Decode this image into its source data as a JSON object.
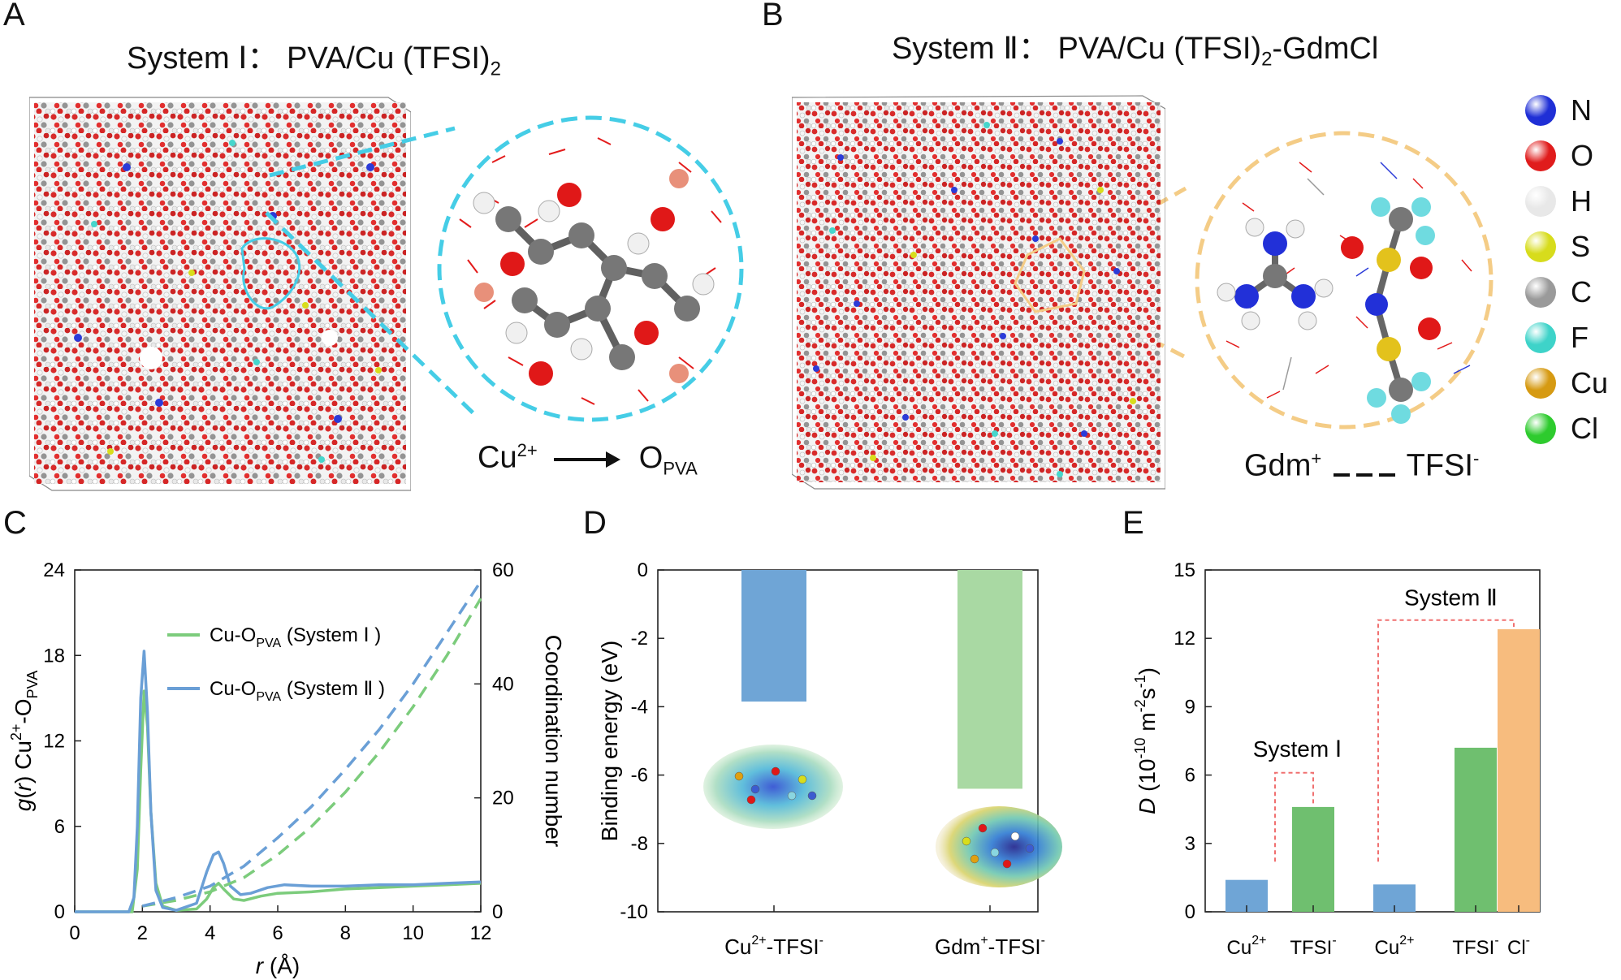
{
  "panels": {
    "a": {
      "letter": "A",
      "title_prefix": "System Ⅰ： PVA/Cu (TFSI)",
      "title_sub": "2",
      "caption_ion": "Cu",
      "caption_ion_sup": "2+",
      "caption_target": "O",
      "caption_target_sub": "PVA"
    },
    "b": {
      "letter": "B",
      "title_prefix": "System Ⅱ： PVA/Cu (TFSI)",
      "title_sub": "2",
      "title_suffix": "-GdmCl",
      "caption_left": "Gdm",
      "caption_left_sup": "+",
      "caption_right": "TFSI",
      "caption_right_sup": "-"
    },
    "c": {
      "letter": "C"
    },
    "d": {
      "letter": "D"
    },
    "e": {
      "letter": "E"
    }
  },
  "element_legend": [
    {
      "symbol": "N",
      "color": "#1f2fd6"
    },
    {
      "symbol": "O",
      "color": "#e01c1c"
    },
    {
      "symbol": "H",
      "color": "#e8e8e8"
    },
    {
      "symbol": "S",
      "color": "#d7dc1c"
    },
    {
      "symbol": "C",
      "color": "#9a9a9a"
    },
    {
      "symbol": "F",
      "color": "#3ed3c9"
    },
    {
      "symbol": "Cu",
      "color": "#d69a12"
    },
    {
      "symbol": "Cl",
      "color": "#2ecb2e"
    }
  ],
  "chart_data": [
    {
      "type": "line",
      "id": "C",
      "xlabel": "r (Å)",
      "ylabel_left": "g(r) Cu2+-OPVA",
      "ylabel_right": "Coordination number",
      "xlim": [
        0,
        12
      ],
      "ylim_left": [
        0,
        24
      ],
      "ylim_right": [
        0,
        60
      ],
      "xticks": [
        "0",
        "2",
        "4",
        "6",
        "8",
        "10",
        "12"
      ],
      "yticks_left": [
        "0",
        "6",
        "12",
        "18",
        "24"
      ],
      "yticks_right": [
        "0",
        "20",
        "40",
        "60"
      ],
      "legend": [
        {
          "name": "Cu-O",
          "sub": "PVA",
          "suffix": " (System Ⅰ )",
          "color": "#7ccc7c"
        },
        {
          "name": "Cu-O",
          "sub": "PVA",
          "suffix": " (System Ⅱ )",
          "color": "#6a9fd6"
        }
      ],
      "series": [
        {
          "name": "g(r) System I",
          "color": "#7ccc7c",
          "dash": false,
          "x": [
            0,
            1.7,
            1.85,
            1.95,
            2.05,
            2.15,
            2.25,
            2.4,
            2.6,
            3.0,
            3.6,
            3.9,
            4.1,
            4.25,
            4.4,
            4.7,
            5.0,
            5.5,
            6.0,
            7.0,
            8.0,
            9.0,
            10.0,
            11.0,
            12.0
          ],
          "y": [
            0,
            0,
            3,
            10,
            15.5,
            13,
            7,
            2,
            0.4,
            0.1,
            0.2,
            0.9,
            1.7,
            2.0,
            1.6,
            0.9,
            0.8,
            1.1,
            1.3,
            1.4,
            1.6,
            1.7,
            1.8,
            1.9,
            2.0
          ]
        },
        {
          "name": "g(r) System II",
          "color": "#6a9fd6",
          "dash": false,
          "x": [
            0,
            1.6,
            1.75,
            1.85,
            1.95,
            2.05,
            2.15,
            2.25,
            2.4,
            2.6,
            3.0,
            3.6,
            3.9,
            4.1,
            4.25,
            4.4,
            4.6,
            4.9,
            5.2,
            5.7,
            6.2,
            7.0,
            8.0,
            9.0,
            10.0,
            11.0,
            12.0
          ],
          "y": [
            0,
            0,
            1,
            6,
            15,
            18.3,
            14,
            7,
            1.5,
            0.3,
            0.1,
            0.6,
            2.8,
            4.0,
            4.2,
            3.4,
            1.8,
            1.2,
            1.3,
            1.7,
            1.9,
            1.8,
            1.8,
            1.9,
            1.9,
            2.0,
            2.1
          ]
        },
        {
          "name": "CN System I",
          "color": "#7ccc7c",
          "dash": true,
          "axis": "right",
          "x": [
            2,
            3,
            4,
            5,
            6,
            7,
            8,
            9,
            10,
            11,
            12
          ],
          "y": [
            1,
            2,
            3.5,
            6,
            10,
            15,
            21,
            28,
            36,
            45,
            55
          ]
        },
        {
          "name": "CN System II",
          "color": "#6a9fd6",
          "dash": true,
          "axis": "right",
          "x": [
            2,
            3,
            4,
            5,
            6,
            7,
            8,
            9,
            10,
            11,
            12
          ],
          "y": [
            1,
            2.5,
            4.5,
            8,
            13,
            18.5,
            25,
            32,
            40,
            49,
            58
          ]
        }
      ]
    },
    {
      "type": "bar",
      "id": "D",
      "ylabel": "Binding energy (eV)",
      "ylim": [
        -10,
        0
      ],
      "yticks": [
        "0",
        "-2",
        "-4",
        "-6",
        "-8",
        "-10"
      ],
      "categories": [
        "Cu2+-TFSI-",
        "Gdm+-TFSI-"
      ],
      "category_parts": [
        {
          "base": "Cu",
          "sup": "2+",
          "mid": "-TFSI",
          "sup2": "-"
        },
        {
          "base": "Gdm",
          "sup": "+",
          "mid": "-TFSI",
          "sup2": "-"
        }
      ],
      "values": [
        -3.85,
        -6.4
      ],
      "colors": [
        "#6fa5d6",
        "#a9d9a3"
      ]
    },
    {
      "type": "bar",
      "id": "E",
      "ylabel": "D (10-10 m-2 s-1)",
      "ylim": [
        0,
        15
      ],
      "yticks": [
        "0",
        "3",
        "6",
        "9",
        "12",
        "15"
      ],
      "categories": [
        "Cu2+",
        "TFSI-",
        "Cu2+",
        "TFSI-",
        "Cl-"
      ],
      "category_parts": [
        {
          "base": "Cu",
          "sup": "2+"
        },
        {
          "base": "TFSI",
          "sup": "-"
        },
        {
          "base": "Cu",
          "sup": "2+"
        },
        {
          "base": "TFSI",
          "sup": "-"
        },
        {
          "base": "Cl",
          "sup": "-"
        }
      ],
      "values": [
        1.4,
        4.6,
        1.2,
        7.2,
        12.4
      ],
      "colors": [
        "#6fa5d6",
        "#6fbf6f",
        "#6fa5d6",
        "#6fbf6f",
        "#f7bc7e"
      ],
      "annotations": [
        "System Ⅰ",
        "System Ⅱ"
      ]
    }
  ]
}
